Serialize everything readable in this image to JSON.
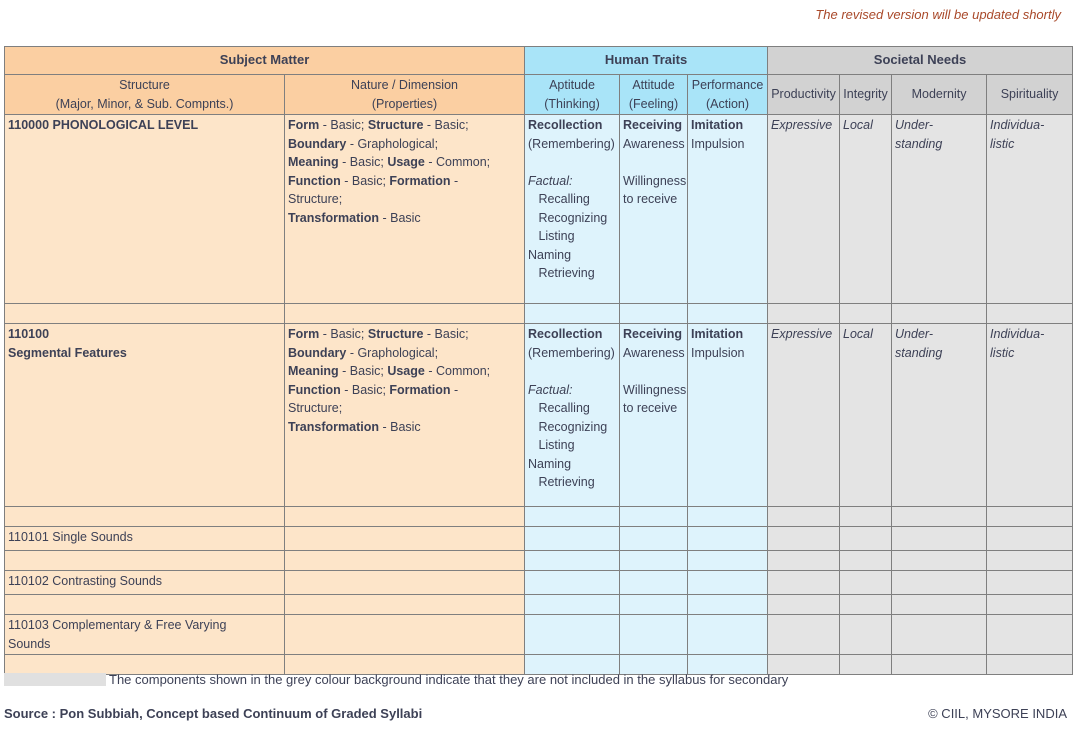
{
  "notice": "The revised version will be updated shortly",
  "colors": {
    "peach_header": "#fbcfa2",
    "peach_body": "#fde5c9",
    "blue_header": "#a9e4f8",
    "blue_body": "#def3fc",
    "grey_header": "#d2d2d2",
    "grey_body": "#e4e4e4",
    "legend_swatch": "#e0e0e0",
    "border": "#7f7f7f",
    "text": "#3d4156",
    "notice_text": "#a9492a"
  },
  "groups": {
    "subject": "Subject Matter",
    "human": "Human Traits",
    "societal": "Societal Needs"
  },
  "columns": {
    "structure": [
      [
        {
          "t": "Structure"
        }
      ],
      [
        {
          "t": "(Major, Minor, & Sub. Compnts.)"
        }
      ]
    ],
    "nature": [
      [
        {
          "t": "Nature / Dimension"
        }
      ],
      [
        {
          "t": "(Properties)"
        }
      ]
    ],
    "aptitude": [
      [
        {
          "t": "Aptitude"
        }
      ],
      [
        {
          "t": "(Thinking)"
        }
      ]
    ],
    "attitude": [
      [
        {
          "t": "Attitude"
        }
      ],
      [
        {
          "t": "(Feeling)"
        }
      ]
    ],
    "performance": [
      [
        {
          "t": "Performance"
        }
      ],
      [
        {
          "t": "(Action)"
        }
      ]
    ],
    "productivity": [
      [
        {
          "t": "Productivity"
        }
      ]
    ],
    "integrity": [
      [
        {
          "t": "Integrity"
        }
      ]
    ],
    "modernity": [
      [
        {
          "t": "Modernity"
        }
      ]
    ],
    "spirituality": [
      [
        {
          "t": "Spirituality"
        }
      ]
    ]
  },
  "rows": {
    "r110000": {
      "structure": [
        [
          {
            "t": "110000 PHONOLOGICAL LEVEL",
            "b": true
          }
        ]
      ],
      "nature": [
        [
          {
            "t": "Form",
            "b": true
          },
          {
            "t": " - Basic; "
          },
          {
            "t": "Structure",
            "b": true
          },
          {
            "t": " - Basic;"
          }
        ],
        [
          {
            "t": "Boundary",
            "b": true
          },
          {
            "t": " - Graphological;"
          }
        ],
        [
          {
            "t": "Meaning",
            "b": true
          },
          {
            "t": " - Basic; "
          },
          {
            "t": "Usage",
            "b": true
          },
          {
            "t": " - Common;"
          }
        ],
        [
          {
            "t": "Function",
            "b": true
          },
          {
            "t": " - Basic; "
          },
          {
            "t": "Formation",
            "b": true
          },
          {
            "t": " -"
          }
        ],
        [
          {
            "t": "Structure;"
          }
        ],
        [
          {
            "t": "Transformation",
            "b": true
          },
          {
            "t": " - Basic"
          }
        ]
      ],
      "aptitude": [
        [
          {
            "t": "Recollection",
            "b": true
          }
        ],
        [
          {
            "t": "(Remembering)"
          }
        ],
        [],
        [
          {
            "t": "Factual:",
            "i": true
          }
        ],
        [
          {
            "t": "   Recalling"
          }
        ],
        [
          {
            "t": "   Recognizing"
          }
        ],
        [
          {
            "t": "   Listing"
          }
        ],
        [
          {
            "t": "Naming"
          }
        ],
        [
          {
            "t": "   Retrieving"
          }
        ]
      ],
      "attitude": [
        [
          {
            "t": "Receiving",
            "b": true
          }
        ],
        [
          {
            "t": "Awareness"
          }
        ],
        [],
        [
          {
            "t": "Willingness"
          }
        ],
        [
          {
            "t": "to receive"
          }
        ]
      ],
      "performance": [
        [
          {
            "t": "Imitation",
            "b": true
          }
        ],
        [
          {
            "t": "Impulsion"
          }
        ]
      ],
      "productivity": [
        [
          {
            "t": "Expressive",
            "i": true
          }
        ]
      ],
      "integrity": [
        [
          {
            "t": "Local",
            "i": true
          }
        ]
      ],
      "modernity": [
        [
          {
            "t": "Under-",
            "i": true
          }
        ],
        [
          {
            "t": "standing",
            "i": true
          }
        ]
      ],
      "spirituality": [
        [
          {
            "t": "Individua-",
            "i": true
          }
        ],
        [
          {
            "t": "listic",
            "i": true
          }
        ]
      ]
    },
    "r110100": {
      "structure": [
        [
          {
            "t": "110100",
            "b": true
          }
        ],
        [
          {
            "t": "Segmental Features",
            "b": true
          }
        ]
      ],
      "nature": [
        [
          {
            "t": "Form",
            "b": true
          },
          {
            "t": " - Basic; "
          },
          {
            "t": "Structure",
            "b": true
          },
          {
            "t": " - Basic;"
          }
        ],
        [
          {
            "t": "Boundary",
            "b": true
          },
          {
            "t": " - Graphological;"
          }
        ],
        [
          {
            "t": "Meaning",
            "b": true
          },
          {
            "t": " - Basic; "
          },
          {
            "t": "Usage",
            "b": true
          },
          {
            "t": " - Common;"
          }
        ],
        [
          {
            "t": "Function",
            "b": true
          },
          {
            "t": " - Basic; "
          },
          {
            "t": "Formation",
            "b": true
          },
          {
            "t": " -"
          }
        ],
        [
          {
            "t": "Structure;"
          }
        ],
        [
          {
            "t": "Transformation",
            "b": true
          },
          {
            "t": " - Basic"
          }
        ]
      ],
      "aptitude": [
        [
          {
            "t": "Recollection",
            "b": true
          }
        ],
        [
          {
            "t": "(Remembering)"
          }
        ],
        [],
        [
          {
            "t": "Factual:",
            "i": true
          }
        ],
        [
          {
            "t": "   Recalling"
          }
        ],
        [
          {
            "t": "   Recognizing"
          }
        ],
        [
          {
            "t": "   Listing"
          }
        ],
        [
          {
            "t": "Naming"
          }
        ],
        [
          {
            "t": "   Retrieving"
          }
        ]
      ],
      "attitude": [
        [
          {
            "t": "Receiving",
            "b": true
          }
        ],
        [
          {
            "t": "Awareness"
          }
        ],
        [],
        [
          {
            "t": "Willingness"
          }
        ],
        [
          {
            "t": "to receive"
          }
        ]
      ],
      "performance": [
        [
          {
            "t": "Imitation",
            "b": true
          }
        ],
        [
          {
            "t": "Impulsion"
          }
        ]
      ],
      "productivity": [
        [
          {
            "t": "Expressive",
            "i": true
          }
        ]
      ],
      "integrity": [
        [
          {
            "t": "Local",
            "i": true
          }
        ]
      ],
      "modernity": [
        [
          {
            "t": "Under-",
            "i": true
          }
        ],
        [
          {
            "t": "standing",
            "i": true
          }
        ]
      ],
      "spirituality": [
        [
          {
            "t": "Individua-",
            "i": true
          }
        ],
        [
          {
            "t": "listic",
            "i": true
          }
        ]
      ]
    },
    "r110101": {
      "structure": [
        [
          {
            "t": "110101 Single Sounds"
          }
        ]
      ]
    },
    "r110102": {
      "structure": [
        [
          {
            "t": "110102 Contrasting Sounds"
          }
        ]
      ]
    },
    "r110103": {
      "structure": [
        [
          {
            "t": "110103 Complementary & Free Varying"
          }
        ],
        [
          {
            "t": "Sounds"
          }
        ]
      ]
    }
  },
  "legend": {
    "text": "The components shown in the grey colour background indicate that they are not included in the syllabus for secondary"
  },
  "footer": {
    "source": "Source : Pon Subbiah, Concept based Continuum of Graded Syllabi",
    "copyright": "© CIIL, MYSORE INDIA"
  }
}
